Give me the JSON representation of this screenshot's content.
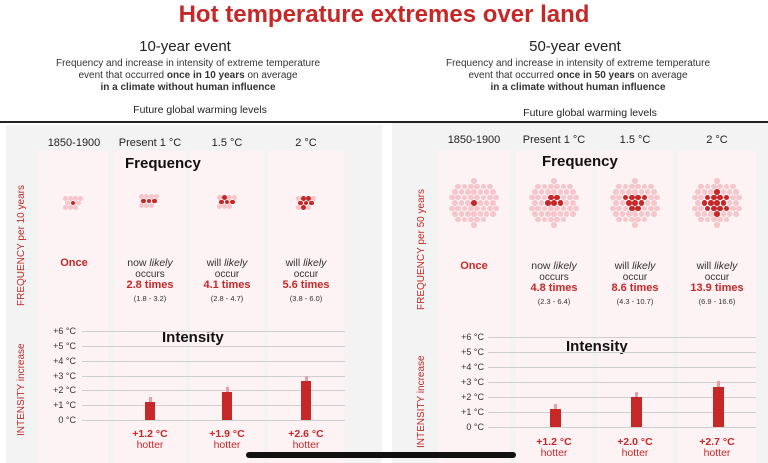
{
  "title": "Hot temperature extremes over land",
  "colors": {
    "accent": "#c62828",
    "dot_light": "#f5c6cc",
    "column_bg": "#fdf3f4"
  },
  "panels": [
    {
      "heading": "10-year event",
      "desc1": "Frequency and increase in intensity of extreme temperature",
      "desc2_a": "event that occurred ",
      "desc2_b": "once in 10 years",
      "desc2_c": " on average",
      "desc3": "in a climate without human influence",
      "future_label": "Future global warming levels",
      "frequency_axis_label": "FREQUENCY per 10 years",
      "intensity_axis_label": "INTENSITY increase",
      "frequency_title": "Frequency",
      "intensity_title": "Intensity",
      "columns": [
        {
          "label": "1850-1900",
          "once": "Once"
        },
        {
          "label": "Present 1 °C",
          "likely_pre": "now ",
          "likely_word": "likely",
          "occurs": "occurs",
          "times": "2.8 times",
          "range": "(1.8 - 3.2)",
          "hotter_val": "+1.2 °C",
          "hotter": "hotter"
        },
        {
          "label": "1.5 °C",
          "likely_pre": "will ",
          "likely_word": "likely",
          "occurs": "occur",
          "times": "4.1 times",
          "range": "(2.8 - 4.7)",
          "hotter_val": "+1.9 °C",
          "hotter": "hotter"
        },
        {
          "label": "2 °C",
          "likely_pre": "will ",
          "likely_word": "likely",
          "occurs": "occur",
          "times": "5.6 times",
          "range": "(3.8 - 6.0)",
          "hotter_val": "+2.6 °C",
          "hotter": "hotter"
        }
      ],
      "ticks": [
        "+6 °C",
        "+5 °C",
        "+4 °C",
        "+3 °C",
        "+2 °C",
        "+1 °C",
        "0 °C"
      ]
    },
    {
      "heading": "50-year event",
      "desc1": "Frequency and increase in intensity of extreme temperature",
      "desc2_a": "event that occurred ",
      "desc2_b": "once in 50 years",
      "desc2_c": " on average",
      "desc3": "in a climate without human influence",
      "future_label": "Future global warming levels",
      "frequency_axis_label": "FREQUENCY per 50 years",
      "intensity_axis_label": "INTENSITY increase",
      "frequency_title": "Frequency",
      "intensity_title": "Intensity",
      "columns": [
        {
          "label": "1850-1900",
          "once": "Once"
        },
        {
          "label": "Present 1 °C",
          "likely_pre": "now ",
          "likely_word": "likely",
          "occurs": "occurs",
          "times": "4.8 times",
          "range": "(2.3 - 6.4)",
          "hotter_val": "+1.2 °C",
          "hotter": "hotter"
        },
        {
          "label": "1.5 °C",
          "likely_pre": "will ",
          "likely_word": "likely",
          "occurs": "occur",
          "times": "8.6 times",
          "range": "(4.3 - 10.7)",
          "hotter_val": "+2.0 °C",
          "hotter": "hotter"
        },
        {
          "label": "2 °C",
          "likely_pre": "will ",
          "likely_word": "likely",
          "occurs": "occur",
          "times": "13.9 times",
          "range": "(6.9 - 16.6)",
          "hotter_val": "+2.7 °C",
          "hotter": "hotter"
        }
      ],
      "ticks": [
        "+6 °C",
        "+5 °C",
        "+4 °C",
        "+3 °C",
        "+2 °C",
        "+1 °C",
        "0 °C"
      ]
    }
  ],
  "chart_data": [
    {
      "type": "bar",
      "title": "10-year event",
      "categories": [
        "1850-1900",
        "Present 1 °C",
        "1.5 °C",
        "2 °C"
      ],
      "frequency": {
        "unit": "per 10 years",
        "values": [
          1,
          2.8,
          4.1,
          5.6
        ],
        "ranges": [
          null,
          [
            1.8,
            3.2
          ],
          [
            2.8,
            4.7
          ],
          [
            3.8,
            6.0
          ]
        ]
      },
      "intensity": {
        "unit": "°C",
        "values": [
          0,
          1.2,
          1.9,
          2.6
        ],
        "ylim": [
          0,
          6
        ]
      }
    },
    {
      "type": "bar",
      "title": "50-year event",
      "categories": [
        "1850-1900",
        "Present 1 °C",
        "1.5 °C",
        "2 °C"
      ],
      "frequency": {
        "unit": "per 50 years",
        "values": [
          1,
          4.8,
          8.6,
          13.9
        ],
        "ranges": [
          null,
          [
            2.3,
            6.4
          ],
          [
            4.3,
            10.7
          ],
          [
            6.9,
            16.6
          ]
        ]
      },
      "intensity": {
        "unit": "°C",
        "values": [
          0,
          1.2,
          2.0,
          2.7
        ],
        "ylim": [
          0,
          6
        ]
      }
    }
  ]
}
